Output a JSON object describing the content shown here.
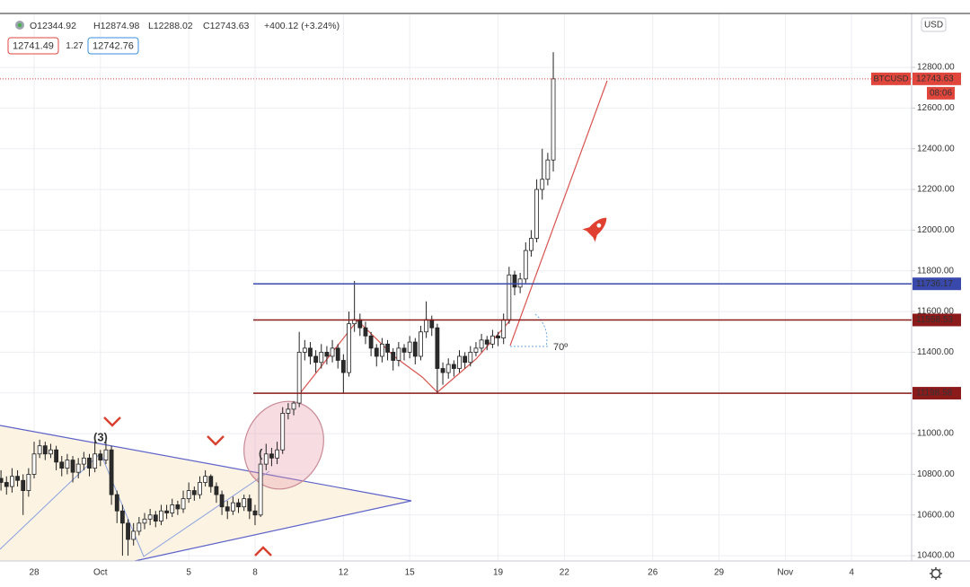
{
  "chart_data": {
    "type": "candlestick",
    "currency": "USD",
    "symbol": "BTCUSD",
    "countdown": "08:06",
    "ohlc_header": [
      "O12344.92",
      "H12874.98",
      "L12288.02",
      "C12743.63",
      "+400.12 (+3.24%)"
    ],
    "quote": {
      "bid": 12741.49,
      "spread": 1.27,
      "ask": 12742.76
    },
    "annotations": [
      "(3)",
      "(",
      "70º"
    ],
    "xlim": [
      -1.545,
      39.72
    ],
    "xticks": [
      {
        "value": 0,
        "label": "28"
      },
      {
        "value": 3,
        "label": "Oct"
      },
      {
        "value": 7,
        "label": "5"
      },
      {
        "value": 10,
        "label": "8"
      },
      {
        "value": 14,
        "label": "12"
      },
      {
        "value": 17,
        "label": "15"
      },
      {
        "value": 21,
        "label": "19"
      },
      {
        "value": 24,
        "label": "22"
      },
      {
        "value": 28,
        "label": "26"
      },
      {
        "value": 31,
        "label": "29"
      },
      {
        "value": 34,
        "label": "Nov"
      },
      {
        "value": 37,
        "label": "4"
      }
    ],
    "ylim": [
      10374,
      13065
    ],
    "yticks": [
      {
        "value": 10400,
        "label": "10400.00"
      },
      {
        "value": 10600,
        "label": "10600.00"
      },
      {
        "value": 10800,
        "label": "10800.00"
      },
      {
        "value": 11000,
        "label": "11000.00"
      },
      {
        "value": 11200,
        "label": "11200.00"
      },
      {
        "value": 11400,
        "label": "11400.00"
      },
      {
        "value": 11600,
        "label": "11600.00"
      },
      {
        "value": 11800,
        "label": "11800.00"
      },
      {
        "value": 12000,
        "label": "12000.00"
      },
      {
        "value": 12200,
        "label": "12200.00"
      },
      {
        "value": 12400,
        "label": "12400.00"
      },
      {
        "value": 12600,
        "label": "12600.00"
      },
      {
        "value": 12800,
        "label": "12800.00"
      }
    ],
    "grid": true,
    "levels": [
      {
        "value": 11736.17,
        "color": "#3949ab"
      },
      {
        "value": 11558.53,
        "color": "#8b1a1a"
      },
      {
        "value": 11198.58,
        "color": "#8b1a1a"
      }
    ],
    "up_color": "#ffffff",
    "down_color": "#2b2b2b",
    "price_color": "#e0463c",
    "candles": {
      "x": [
        -1.5,
        -1.25,
        -1,
        -0.75,
        -0.5,
        -0.25,
        0,
        0.25,
        0.5,
        0.75,
        1,
        1.25,
        1.5,
        1.75,
        2,
        2.25,
        2.5,
        2.75,
        3,
        3.25,
        3.5,
        3.75,
        4,
        4.25,
        4.5,
        4.75,
        5,
        5.25,
        5.5,
        5.75,
        6,
        6.25,
        6.5,
        6.75,
        7,
        7.25,
        7.5,
        7.75,
        8,
        8.25,
        8.5,
        8.75,
        9,
        9.25,
        9.5,
        9.75,
        10,
        10.25,
        10.5,
        10.75,
        11,
        11.25,
        11.5,
        11.75,
        12,
        12.25,
        12.5,
        12.75,
        13,
        13.25,
        13.5,
        13.75,
        14,
        14.25,
        14.5,
        14.75,
        15,
        15.25,
        15.5,
        15.75,
        16,
        16.25,
        16.5,
        16.75,
        17,
        17.25,
        17.5,
        17.75,
        18,
        18.25,
        18.5,
        18.75,
        19,
        19.25,
        19.5,
        19.75,
        20,
        20.25,
        20.5,
        20.75,
        21,
        21.25,
        21.5,
        21.75,
        22,
        22.25,
        22.5,
        22.75,
        23,
        23.25,
        23.5
      ],
      "open": [
        10780,
        10760,
        10740,
        10790,
        10770,
        10720,
        10800,
        10900,
        10940,
        10900,
        10920,
        10860,
        10830,
        10870,
        10810,
        10850,
        10880,
        10830,
        10900,
        10870,
        10920,
        10700,
        10620,
        10560,
        10480,
        10520,
        10560,
        10580,
        10600,
        10570,
        10620,
        10610,
        10650,
        10630,
        10680,
        10720,
        10700,
        10760,
        10790,
        10740,
        10700,
        10640,
        10620,
        10660,
        10640,
        10680,
        10620,
        10600,
        10850,
        10900,
        10880,
        10920,
        11100,
        11120,
        11150,
        11400,
        11420,
        11380,
        11350,
        11400,
        11380,
        11420,
        11360,
        11300,
        11540,
        11560,
        11520,
        11480,
        11420,
        11380,
        11440,
        11400,
        11360,
        11420,
        11400,
        11450,
        11380,
        11500,
        11560,
        11520,
        11320,
        11300,
        11340,
        11320,
        11380,
        11350,
        11400,
        11420,
        11460,
        11440,
        11480,
        11470,
        11560,
        11780,
        11720,
        11760,
        11900,
        11960,
        12200,
        12250,
        12344.92
      ],
      "high": [
        10820,
        10790,
        10830,
        10820,
        10800,
        10830,
        10960,
        10970,
        10960,
        10950,
        10940,
        10890,
        10900,
        10890,
        10880,
        10910,
        10900,
        10960,
        10920,
        10960,
        10940,
        10720,
        10650,
        10580,
        10560,
        10590,
        10610,
        10630,
        10620,
        10650,
        10650,
        10680,
        10670,
        10720,
        10760,
        10740,
        10790,
        10820,
        10800,
        10760,
        10720,
        10670,
        10690,
        10680,
        10700,
        10700,
        10650,
        10880,
        10950,
        10930,
        10960,
        11130,
        11150,
        11160,
        11500,
        11460,
        11450,
        11410,
        11440,
        11430,
        11460,
        11440,
        11390,
        11600,
        11750,
        11590,
        11550,
        11500,
        11440,
        11470,
        11460,
        11420,
        11450,
        11440,
        11480,
        11470,
        11530,
        11650,
        11580,
        11540,
        11350,
        11370,
        11360,
        11410,
        11400,
        11430,
        11450,
        11490,
        11480,
        11510,
        11500,
        11590,
        11820,
        11800,
        11790,
        11940,
        12000,
        12250,
        12400,
        12380,
        12874.98
      ],
      "low": [
        10720,
        10700,
        10710,
        10740,
        10600,
        10690,
        10780,
        10880,
        10870,
        10880,
        10820,
        10790,
        10800,
        10760,
        10780,
        10820,
        10790,
        10810,
        10840,
        10850,
        10650,
        10560,
        10400,
        10400,
        10450,
        10500,
        10530,
        10550,
        10540,
        10550,
        10580,
        10590,
        10600,
        10610,
        10660,
        10670,
        10680,
        10740,
        10710,
        10660,
        10600,
        10580,
        10600,
        10610,
        10620,
        10580,
        10550,
        10590,
        10820,
        10840,
        10850,
        10900,
        11070,
        11090,
        11130,
        11360,
        11340,
        11300,
        11320,
        11340,
        11350,
        11320,
        11200,
        11280,
        11500,
        11480,
        11440,
        11380,
        11330,
        11350,
        11360,
        11310,
        11330,
        11360,
        11370,
        11340,
        11360,
        11470,
        11480,
        11200,
        11240,
        11270,
        11280,
        11300,
        11320,
        11330,
        11380,
        11400,
        11410,
        11420,
        11430,
        11440,
        11540,
        11680,
        11690,
        11740,
        11870,
        11940,
        12150,
        12220,
        12288.02
      ],
      "close": [
        10760,
        10740,
        10790,
        10770,
        10720,
        10800,
        10900,
        10940,
        10900,
        10920,
        10860,
        10830,
        10870,
        10810,
        10850,
        10880,
        10830,
        10900,
        10870,
        10920,
        10700,
        10620,
        10560,
        10480,
        10520,
        10560,
        10580,
        10600,
        10570,
        10620,
        10610,
        10650,
        10630,
        10680,
        10720,
        10700,
        10760,
        10790,
        10740,
        10700,
        10640,
        10620,
        10660,
        10640,
        10680,
        10620,
        10600,
        10850,
        10900,
        10880,
        10920,
        11100,
        11120,
        11150,
        11400,
        11420,
        11380,
        11350,
        11400,
        11380,
        11420,
        11360,
        11300,
        11540,
        11560,
        11520,
        11480,
        11420,
        11380,
        11440,
        11400,
        11360,
        11420,
        11400,
        11450,
        11380,
        11500,
        11560,
        11520,
        11320,
        11300,
        11340,
        11320,
        11380,
        11350,
        11400,
        11420,
        11460,
        11440,
        11480,
        11470,
        11560,
        11780,
        11720,
        11760,
        11900,
        11960,
        12200,
        12250,
        12344.92,
        12743.63
      ]
    }
  }
}
